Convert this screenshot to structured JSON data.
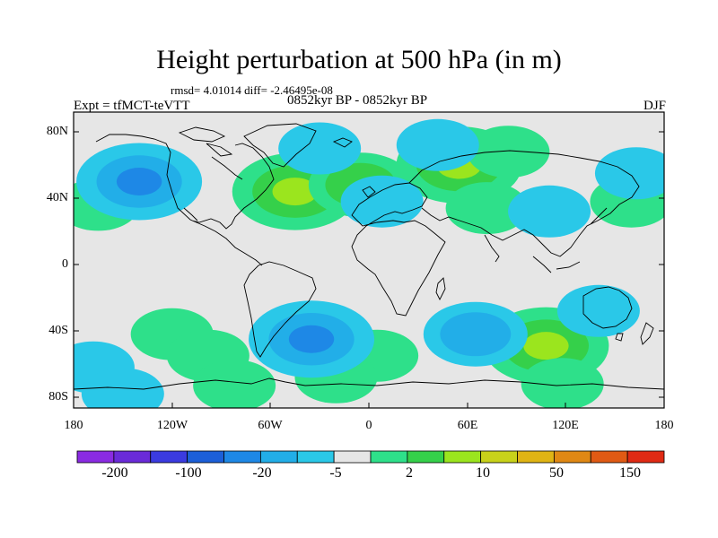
{
  "title": "Height perturbation at 500 hPa (in m)",
  "stats": "rmsd= 4.01014 diff= -2.46495e-08",
  "left_label": "Expt = tfMCT-teVTT",
  "center_label": "0852kyr BP - 0852kyr BP",
  "right_label": "DJF",
  "lat_ticks": [
    "80N",
    "40N",
    "0",
    "40S",
    "80S"
  ],
  "lon_ticks": [
    "180",
    "120W",
    "60W",
    "0",
    "60E",
    "120E",
    "180"
  ],
  "colorbar": {
    "labels": [
      "-200",
      "-100",
      "-20",
      "-5",
      "2",
      "10",
      "50",
      "150"
    ],
    "colors": [
      "#8a2be2",
      "#6a2bd8",
      "#3b3be0",
      "#1c5fd8",
      "#1e88e6",
      "#22aee8",
      "#2ac8e8",
      "#e6e6e6",
      "#2ee08a",
      "#35d04a",
      "#9be51e",
      "#c8d21a",
      "#e0b414",
      "#e08814",
      "#e05a14",
      "#e02a14"
    ]
  },
  "colors": {
    "ocean": "#e6e6e6",
    "coast": "#000000"
  },
  "map_fields": {
    "positive": [
      {
        "lon": -165,
        "lat": 36,
        "level": 1
      },
      {
        "lon": -120,
        "lat": -42,
        "level": 1
      },
      {
        "lon": -98,
        "lat": -55,
        "level": 1
      },
      {
        "lon": -45,
        "lat": 44,
        "level": 3
      },
      {
        "lon": -5,
        "lat": 48,
        "level": 2
      },
      {
        "lon": 5,
        "lat": -55,
        "level": 1
      },
      {
        "lon": 55,
        "lat": 60,
        "level": 3
      },
      {
        "lon": 85,
        "lat": 68,
        "level": 1
      },
      {
        "lon": 108,
        "lat": -49,
        "level": 3
      },
      {
        "lon": 72,
        "lat": 34,
        "level": 1
      },
      {
        "lon": 160,
        "lat": 38,
        "level": 1
      },
      {
        "lon": -20,
        "lat": -68,
        "level": 1
      },
      {
        "lon": 118,
        "lat": -72,
        "level": 1
      },
      {
        "lon": -82,
        "lat": -73,
        "level": 1
      }
    ],
    "negative": [
      {
        "lon": -140,
        "lat": 50,
        "level": 3
      },
      {
        "lon": -35,
        "lat": -45,
        "level": 3
      },
      {
        "lon": 65,
        "lat": -42,
        "level": 2
      },
      {
        "lon": 8,
        "lat": 38,
        "level": 1
      },
      {
        "lon": 110,
        "lat": 32,
        "level": 1
      },
      {
        "lon": 140,
        "lat": -28,
        "level": 1
      },
      {
        "lon": 163,
        "lat": 55,
        "level": 1
      },
      {
        "lon": -30,
        "lat": 70,
        "level": 1
      },
      {
        "lon": -168,
        "lat": -62,
        "level": 1
      },
      {
        "lon": 42,
        "lat": 72,
        "level": 1
      },
      {
        "lon": -150,
        "lat": -78,
        "level": 1
      }
    ]
  }
}
